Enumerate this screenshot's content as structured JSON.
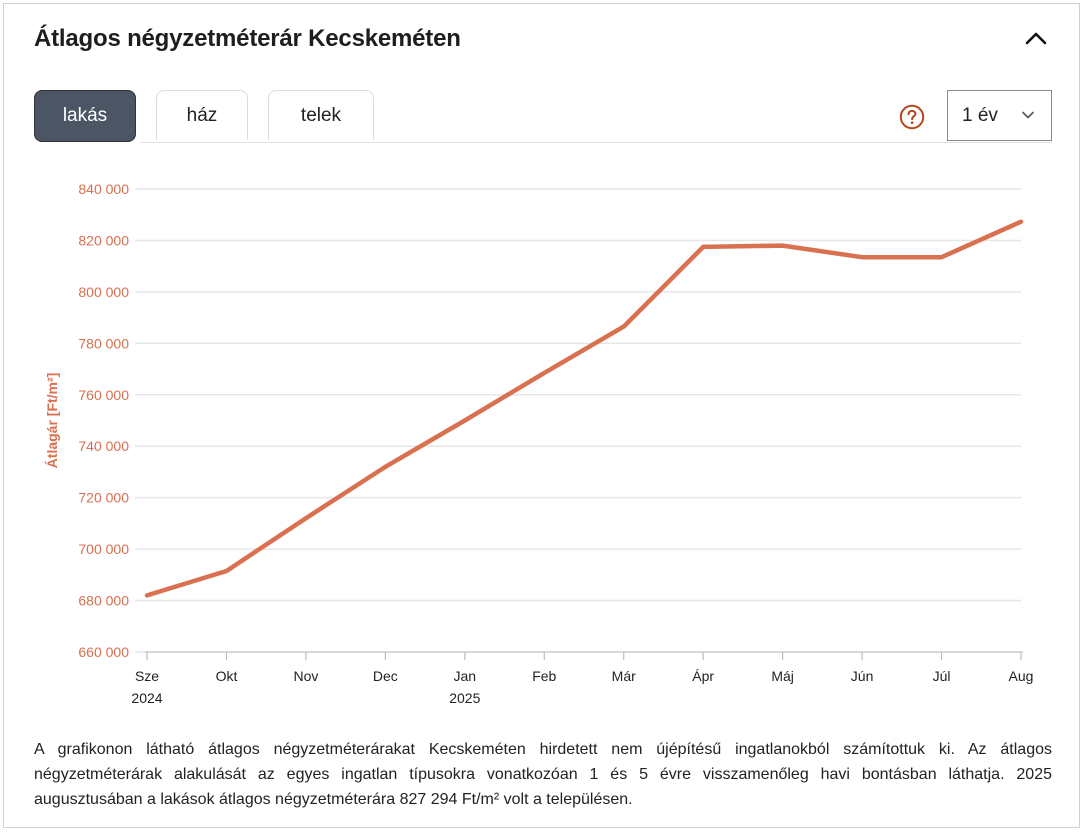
{
  "title": "Átlagos négyzetméterár Kecskeméten",
  "tabs": [
    {
      "label": "lakás",
      "active": true
    },
    {
      "label": "ház",
      "active": false
    },
    {
      "label": "telek",
      "active": false
    }
  ],
  "period_select": {
    "value": "1 év"
  },
  "icons": {
    "collapse": "chevron-up-icon",
    "help": "question-circle-icon",
    "dropdown": "chevron-down-icon"
  },
  "colors": {
    "accent": "#d9704f",
    "active_tab": "#4b5563",
    "help_icon": "#b5471b"
  },
  "chart_data": {
    "type": "line",
    "ylabel": "Átlagár [Ft/m²]",
    "xlabel": "",
    "ylim": [
      660000,
      840000
    ],
    "yticks": [
      840000,
      820000,
      800000,
      780000,
      760000,
      740000,
      720000,
      700000,
      680000,
      660000
    ],
    "ytick_labels": [
      "840 000",
      "820 000",
      "800 000",
      "780 000",
      "760 000",
      "740 000",
      "720 000",
      "700 000",
      "680 000",
      "660 000"
    ],
    "categories": [
      "Sze",
      "Okt",
      "Nov",
      "Dec",
      "Jan",
      "Feb",
      "Már",
      "Ápr",
      "Máj",
      "Jún",
      "Júl",
      "Aug"
    ],
    "category_sublabels": [
      "2024",
      "",
      "",
      "",
      "2025",
      "",
      "",
      "",
      "",
      "",
      "",
      ""
    ],
    "series": [
      {
        "values": [
          682000,
          691500,
          712000,
          732000,
          750000,
          768500,
          786500,
          817500,
          818000,
          813500,
          813500,
          827294
        ]
      }
    ],
    "grid": true,
    "legend": "none"
  },
  "description": {
    "lines": [
      "A grafikonon látható átlagos négyzetméterárakat Kecskeméten hirdetett nem újépítésű ingatlanokból számítottuk ki. Az átlagos",
      "négyzetméterárak alakulását az egyes ingatlan típusokra vonatkozóan 1 és 5 évre visszamenőleg havi bontásban láthatja. 2025",
      "augusztusában a lakások átlagos négyzetméterára 827 294 Ft/m² volt a településen."
    ]
  }
}
